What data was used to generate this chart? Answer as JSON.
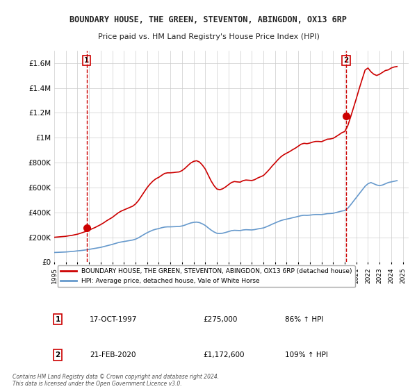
{
  "title": "BOUNDARY HOUSE, THE GREEN, STEVENTON, ABINGDON, OX13 6RP",
  "subtitle": "Price paid vs. HM Land Registry's House Price Index (HPI)",
  "background_color": "#ffffff",
  "plot_bg_color": "#ffffff",
  "grid_color": "#cccccc",
  "hpi_line_color": "#6699cc",
  "price_line_color": "#cc0000",
  "dashed_line_color": "#cc0000",
  "ylim": [
    0,
    1700000
  ],
  "xlim_start": 1995.0,
  "xlim_end": 2025.5,
  "yticks": [
    0,
    200000,
    400000,
    600000,
    800000,
    1000000,
    1200000,
    1400000,
    1600000
  ],
  "ytick_labels": [
    "£0",
    "£200K",
    "£400K",
    "£600K",
    "£800K",
    "£1M",
    "£1.2M",
    "£1.4M",
    "£1.6M"
  ],
  "xticks": [
    1995,
    1996,
    1997,
    1998,
    1999,
    2000,
    2001,
    2002,
    2003,
    2004,
    2005,
    2006,
    2007,
    2008,
    2009,
    2010,
    2011,
    2012,
    2013,
    2014,
    2015,
    2016,
    2017,
    2018,
    2019,
    2020,
    2021,
    2022,
    2023,
    2024,
    2025
  ],
  "transaction1_x": 1997.79,
  "transaction1_y": 275000,
  "transaction1_label": "1",
  "transaction2_x": 2020.13,
  "transaction2_y": 1172600,
  "transaction2_label": "2",
  "legend_line1": "BOUNDARY HOUSE, THE GREEN, STEVENTON, ABINGDON, OX13 6RP (detached house)",
  "legend_line2": "HPI: Average price, detached house, Vale of White Horse",
  "annotation1_date": "17-OCT-1997",
  "annotation1_price": "£275,000",
  "annotation1_hpi": "86% ↑ HPI",
  "annotation2_date": "21-FEB-2020",
  "annotation2_price": "£1,172,600",
  "annotation2_hpi": "109% ↑ HPI",
  "footer": "Contains HM Land Registry data © Crown copyright and database right 2024.\nThis data is licensed under the Open Government Licence v3.0.",
  "hpi_data_x": [
    1995.0,
    1995.25,
    1995.5,
    1995.75,
    1996.0,
    1996.25,
    1996.5,
    1996.75,
    1997.0,
    1997.25,
    1997.5,
    1997.75,
    1998.0,
    1998.25,
    1998.5,
    1998.75,
    1999.0,
    1999.25,
    1999.5,
    1999.75,
    2000.0,
    2000.25,
    2000.5,
    2000.75,
    2001.0,
    2001.25,
    2001.5,
    2001.75,
    2002.0,
    2002.25,
    2002.5,
    2002.75,
    2003.0,
    2003.25,
    2003.5,
    2003.75,
    2004.0,
    2004.25,
    2004.5,
    2004.75,
    2005.0,
    2005.25,
    2005.5,
    2005.75,
    2006.0,
    2006.25,
    2006.5,
    2006.75,
    2007.0,
    2007.25,
    2007.5,
    2007.75,
    2008.0,
    2008.25,
    2008.5,
    2008.75,
    2009.0,
    2009.25,
    2009.5,
    2009.75,
    2010.0,
    2010.25,
    2010.5,
    2010.75,
    2011.0,
    2011.25,
    2011.5,
    2011.75,
    2012.0,
    2012.25,
    2012.5,
    2012.75,
    2013.0,
    2013.25,
    2013.5,
    2013.75,
    2014.0,
    2014.25,
    2014.5,
    2014.75,
    2015.0,
    2015.25,
    2015.5,
    2015.75,
    2016.0,
    2016.25,
    2016.5,
    2016.75,
    2017.0,
    2017.25,
    2017.5,
    2017.75,
    2018.0,
    2018.25,
    2018.5,
    2018.75,
    2019.0,
    2019.25,
    2019.5,
    2019.75,
    2020.0,
    2020.25,
    2020.5,
    2020.75,
    2021.0,
    2021.25,
    2021.5,
    2021.75,
    2022.0,
    2022.25,
    2022.5,
    2022.75,
    2023.0,
    2023.25,
    2023.5,
    2023.75,
    2024.0,
    2024.25,
    2024.5
  ],
  "hpi_data_y": [
    78000,
    79000,
    80000,
    81000,
    82000,
    84000,
    86000,
    88000,
    91000,
    93000,
    96000,
    99000,
    103000,
    107000,
    111000,
    115000,
    119000,
    125000,
    131000,
    137000,
    143000,
    150000,
    157000,
    162000,
    166000,
    170000,
    174000,
    178000,
    185000,
    196000,
    210000,
    224000,
    237000,
    248000,
    258000,
    265000,
    270000,
    277000,
    282000,
    284000,
    284000,
    285000,
    286000,
    287000,
    291000,
    298000,
    307000,
    315000,
    320000,
    322000,
    318000,
    308000,
    295000,
    276000,
    258000,
    243000,
    232000,
    230000,
    233000,
    239000,
    246000,
    253000,
    256000,
    255000,
    254000,
    259000,
    261000,
    260000,
    259000,
    262000,
    267000,
    271000,
    275000,
    284000,
    294000,
    305000,
    315000,
    325000,
    334000,
    341000,
    346000,
    351000,
    357000,
    362000,
    368000,
    374000,
    377000,
    376000,
    378000,
    381000,
    383000,
    383000,
    382000,
    386000,
    390000,
    391000,
    393000,
    399000,
    405000,
    411000,
    415000,
    432000,
    460000,
    490000,
    520000,
    550000,
    580000,
    610000,
    630000,
    640000,
    630000,
    620000,
    615000,
    620000,
    630000,
    640000,
    645000,
    650000,
    655000
  ],
  "price_data_x": [
    1995.0,
    1995.25,
    1995.5,
    1995.75,
    1996.0,
    1996.25,
    1996.5,
    1996.75,
    1997.0,
    1997.25,
    1997.5,
    1997.75,
    1998.0,
    1998.25,
    1998.5,
    1998.75,
    1999.0,
    1999.25,
    1999.5,
    1999.75,
    2000.0,
    2000.25,
    2000.5,
    2000.75,
    2001.0,
    2001.25,
    2001.5,
    2001.75,
    2002.0,
    2002.25,
    2002.5,
    2002.75,
    2003.0,
    2003.25,
    2003.5,
    2003.75,
    2004.0,
    2004.25,
    2004.5,
    2004.75,
    2005.0,
    2005.25,
    2005.5,
    2005.75,
    2006.0,
    2006.25,
    2006.5,
    2006.75,
    2007.0,
    2007.25,
    2007.5,
    2007.75,
    2008.0,
    2008.25,
    2008.5,
    2008.75,
    2009.0,
    2009.25,
    2009.5,
    2009.75,
    2010.0,
    2010.25,
    2010.5,
    2010.75,
    2011.0,
    2011.25,
    2011.5,
    2011.75,
    2012.0,
    2012.25,
    2012.5,
    2012.75,
    2013.0,
    2013.25,
    2013.5,
    2013.75,
    2014.0,
    2014.25,
    2014.5,
    2014.75,
    2015.0,
    2015.25,
    2015.5,
    2015.75,
    2016.0,
    2016.25,
    2016.5,
    2016.75,
    2017.0,
    2017.25,
    2017.5,
    2017.75,
    2018.0,
    2018.25,
    2018.5,
    2018.75,
    2019.0,
    2019.25,
    2019.5,
    2019.75,
    2020.0,
    2020.25,
    2020.5,
    2020.75,
    2021.0,
    2021.25,
    2021.5,
    2021.75,
    2022.0,
    2022.25,
    2022.5,
    2022.75,
    2023.0,
    2023.25,
    2023.5,
    2023.75,
    2024.0,
    2024.25,
    2024.5
  ],
  "price_data_y": [
    200000,
    202000,
    204000,
    206000,
    208000,
    212000,
    215000,
    220000,
    225000,
    232000,
    240000,
    248000,
    258000,
    268000,
    278000,
    290000,
    302000,
    316000,
    332000,
    346000,
    360000,
    378000,
    396000,
    410000,
    420000,
    430000,
    440000,
    450000,
    468000,
    495000,
    530000,
    565000,
    600000,
    628000,
    652000,
    670000,
    682000,
    698000,
    713000,
    718000,
    718000,
    720000,
    723000,
    725000,
    736000,
    754000,
    776000,
    797000,
    810000,
    815000,
    805000,
    780000,
    748000,
    700000,
    653000,
    615000,
    588000,
    582000,
    590000,
    605000,
    623000,
    640000,
    648000,
    645000,
    643000,
    655000,
    660000,
    658000,
    656000,
    663000,
    676000,
    686000,
    696000,
    719000,
    744000,
    772000,
    797000,
    823000,
    846000,
    863000,
    876000,
    888000,
    903000,
    916000,
    932000,
    948000,
    955000,
    952000,
    957000,
    965000,
    970000,
    970000,
    968000,
    978000,
    988000,
    990000,
    995000,
    1009000,
    1024000,
    1040000,
    1050000,
    1093000,
    1165000,
    1240000,
    1316000,
    1395000,
    1470000,
    1543000,
    1560000,
    1530000,
    1510000,
    1500000,
    1510000,
    1525000,
    1540000,
    1545000,
    1560000,
    1568000,
    1572000
  ]
}
